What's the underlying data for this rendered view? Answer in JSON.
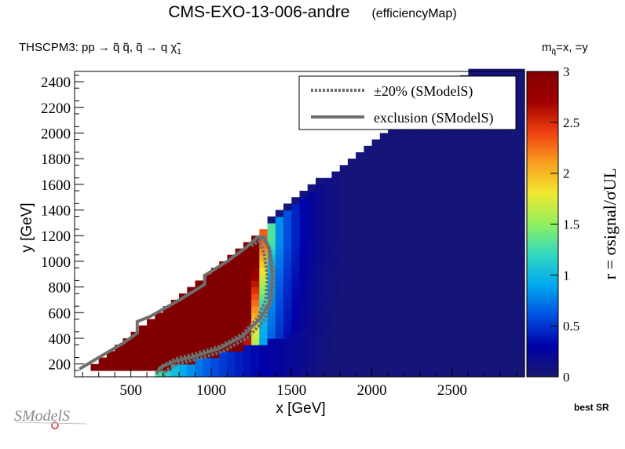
{
  "header": {
    "title": "CMS-EXO-13-006-andre",
    "subtitle": "(efficiencyMap)",
    "process": "THSCPM3: pp  → q̃ q̃, q̃ → q χ̃",
    "process_subscript": "1",
    "mass_note_prefix": "m",
    "mass_note_sub": "q̃",
    "mass_note_suffix": "=x, =y",
    "best_sr": "best SR",
    "logo_text": "SModelS"
  },
  "chart_data": {
    "type": "heatmap",
    "title": "CMS-EXO-13-006-andre",
    "xlabel": "x [GeV]",
    "ylabel": "y [GeV]",
    "zlabel": "r = σsignal/σUL",
    "xlim": [
      150,
      2950
    ],
    "ylim": [
      100,
      2480
    ],
    "zlim": [
      0,
      3
    ],
    "xticks": [
      500,
      1000,
      1500,
      2000,
      2500
    ],
    "yticks": [
      200,
      400,
      600,
      800,
      1000,
      1200,
      1400,
      1600,
      1800,
      2000,
      2200,
      2400
    ],
    "zticks": [
      0,
      0.5,
      1,
      1.5,
      2,
      2.5,
      3
    ],
    "xtick_labels": [
      "500",
      "1000",
      "1500",
      "2000",
      "2500"
    ],
    "ytick_labels": [
      "200",
      "400",
      "600",
      "800",
      "1000",
      "1200",
      "1400",
      "1600",
      "1800",
      "2000",
      "2200",
      "2400"
    ],
    "ztick_labels": [
      "0",
      "0.5",
      "1",
      "1.5",
      "2",
      "2.5",
      "3"
    ],
    "colormap": [
      "#191970",
      "#0000a8",
      "#0050e0",
      "#00a8f0",
      "#30d8c0",
      "#90f060",
      "#f0e830",
      "#f8a020",
      "#f04010",
      "#a00000",
      "#800000"
    ],
    "legend": {
      "position": "top-right",
      "entries": [
        {
          "label": "±20% (SModelS)",
          "style": "dotted",
          "color": "#6e6e6e"
        },
        {
          "label": "exclusion (SModelS)",
          "style": "solid",
          "color": "#6e6e6e"
        }
      ]
    },
    "grid": {
      "x_start": 150,
      "x_step": 50,
      "x_end": 2950,
      "y_start": 100,
      "y_step": 50,
      "y_end": 2480,
      "diagonal_edge": "y <= x - 50",
      "background_r": 0.05
    },
    "contours": {
      "exclusion": [
        [
          180,
          160
        ],
        [
          300,
          250
        ],
        [
          450,
          360
        ],
        [
          540,
          440
        ],
        [
          540,
          530
        ],
        [
          620,
          570
        ],
        [
          790,
          690
        ],
        [
          960,
          820
        ],
        [
          960,
          890
        ],
        [
          1100,
          1000
        ],
        [
          1220,
          1110
        ],
        [
          1290,
          1190
        ],
        [
          1330,
          1190
        ],
        [
          1360,
          1100
        ],
        [
          1380,
          900
        ],
        [
          1370,
          700
        ],
        [
          1310,
          560
        ],
        [
          1200,
          420
        ],
        [
          1050,
          320
        ],
        [
          900,
          260
        ],
        [
          770,
          220
        ],
        [
          680,
          170
        ],
        [
          660,
          120
        ]
      ],
      "plus20": [
        [
          1250,
          1120
        ],
        [
          1300,
          1160
        ],
        [
          1330,
          1060
        ],
        [
          1350,
          880
        ],
        [
          1340,
          700
        ],
        [
          1290,
          560
        ],
        [
          1200,
          440
        ],
        [
          1060,
          340
        ],
        [
          900,
          280
        ],
        [
          780,
          240
        ],
        [
          700,
          190
        ],
        [
          680,
          140
        ]
      ],
      "minus20": [
        [
          1310,
          1180
        ],
        [
          1360,
          1120
        ],
        [
          1390,
          920
        ],
        [
          1380,
          700
        ],
        [
          1330,
          540
        ],
        [
          1230,
          410
        ],
        [
          1080,
          300
        ],
        [
          920,
          240
        ],
        [
          790,
          200
        ],
        [
          720,
          150
        ],
        [
          700,
          110
        ]
      ]
    }
  }
}
